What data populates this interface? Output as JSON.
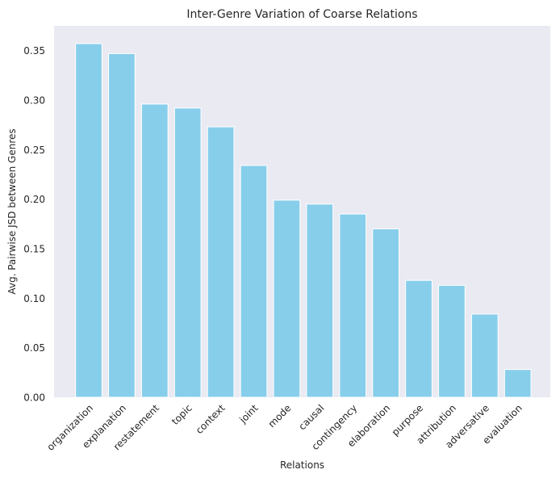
{
  "chart_data": {
    "type": "bar",
    "title": "Inter-Genre Variation of Coarse Relations",
    "xlabel": "Relations",
    "ylabel": "Avg. Pairwise JSD between Genres",
    "categories": [
      "organization",
      "explanation",
      "restatement",
      "topic",
      "context",
      "joint",
      "mode",
      "causal",
      "contingency",
      "elaboration",
      "purpose",
      "attribution",
      "adversative",
      "evaluation"
    ],
    "values": [
      0.357,
      0.347,
      0.296,
      0.292,
      0.273,
      0.234,
      0.199,
      0.195,
      0.185,
      0.17,
      0.118,
      0.113,
      0.084,
      0.028
    ],
    "ylim": [
      0,
      0.375
    ],
    "yticks": [
      "0.00",
      "0.05",
      "0.10",
      "0.15",
      "0.20",
      "0.25",
      "0.30",
      "0.35"
    ],
    "grid": false,
    "colors": {
      "bar": "#87CEEB",
      "plot_background": "#EAEAF2",
      "bar_edge": "#ffffff"
    }
  }
}
